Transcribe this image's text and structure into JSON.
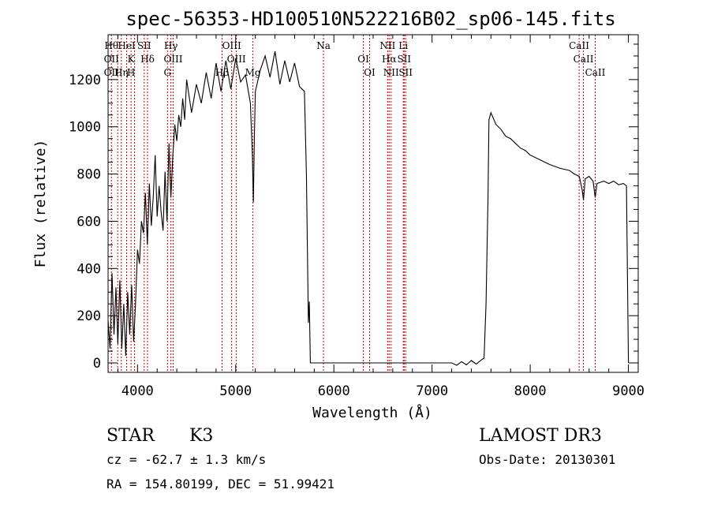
{
  "chart_data": {
    "type": "line",
    "title": "spec-56353-HD100510N522216B02_sp06-145.fits",
    "xlabel": "Wavelength (Å)",
    "ylabel": "Flux (relative)",
    "xlim": [
      3700,
      9100
    ],
    "ylim": [
      -40,
      1390
    ],
    "x_ticks": [
      4000,
      5000,
      6000,
      7000,
      8000,
      9000
    ],
    "y_ticks": [
      0,
      200,
      400,
      600,
      800,
      1000,
      1200
    ],
    "grid": false,
    "series": [
      {
        "points": [
          [
            3700,
            180
          ],
          [
            3720,
            60
          ],
          [
            3740,
            380
          ],
          [
            3760,
            120
          ],
          [
            3780,
            320
          ],
          [
            3800,
            80
          ],
          [
            3820,
            350
          ],
          [
            3840,
            60
          ],
          [
            3860,
            250
          ],
          [
            3880,
            30
          ],
          [
            3900,
            300
          ],
          [
            3920,
            120
          ],
          [
            3940,
            330
          ],
          [
            3960,
            90
          ],
          [
            3980,
            250
          ],
          [
            4000,
            480
          ],
          [
            4020,
            420
          ],
          [
            4040,
            600
          ],
          [
            4060,
            550
          ],
          [
            4080,
            720
          ],
          [
            4100,
            500
          ],
          [
            4120,
            760
          ],
          [
            4140,
            580
          ],
          [
            4160,
            700
          ],
          [
            4180,
            880
          ],
          [
            4200,
            620
          ],
          [
            4220,
            750
          ],
          [
            4240,
            640
          ],
          [
            4260,
            560
          ],
          [
            4280,
            810
          ],
          [
            4300,
            600
          ],
          [
            4320,
            930
          ],
          [
            4340,
            700
          ],
          [
            4360,
            880
          ],
          [
            4380,
            1010
          ],
          [
            4400,
            940
          ],
          [
            4420,
            1050
          ],
          [
            4440,
            1000
          ],
          [
            4460,
            1120
          ],
          [
            4480,
            1030
          ],
          [
            4500,
            1200
          ],
          [
            4550,
            1060
          ],
          [
            4600,
            1180
          ],
          [
            4650,
            1100
          ],
          [
            4700,
            1230
          ],
          [
            4750,
            1120
          ],
          [
            4800,
            1270
          ],
          [
            4850,
            1150
          ],
          [
            4900,
            1280
          ],
          [
            4950,
            1160
          ],
          [
            5000,
            1290
          ],
          [
            5050,
            1190
          ],
          [
            5100,
            1220
          ],
          [
            5150,
            1100
          ],
          [
            5170,
            880
          ],
          [
            5180,
            680
          ],
          [
            5190,
            950
          ],
          [
            5200,
            1150
          ],
          [
            5250,
            1240
          ],
          [
            5300,
            1300
          ],
          [
            5350,
            1210
          ],
          [
            5400,
            1320
          ],
          [
            5450,
            1180
          ],
          [
            5500,
            1280
          ],
          [
            5550,
            1190
          ],
          [
            5600,
            1270
          ],
          [
            5650,
            1170
          ],
          [
            5700,
            1150
          ],
          [
            5720,
            800
          ],
          [
            5740,
            170
          ],
          [
            5750,
            260
          ],
          [
            5760,
            0
          ],
          [
            6000,
            0
          ],
          [
            6500,
            0
          ],
          [
            7000,
            0
          ],
          [
            7200,
            0
          ],
          [
            7250,
            -10
          ],
          [
            7300,
            5
          ],
          [
            7350,
            -8
          ],
          [
            7400,
            10
          ],
          [
            7450,
            -5
          ],
          [
            7500,
            12
          ],
          [
            7530,
            20
          ],
          [
            7550,
            250
          ],
          [
            7570,
            700
          ],
          [
            7580,
            1030
          ],
          [
            7600,
            1060
          ],
          [
            7650,
            1010
          ],
          [
            7700,
            990
          ],
          [
            7750,
            960
          ],
          [
            7800,
            950
          ],
          [
            7850,
            930
          ],
          [
            7900,
            910
          ],
          [
            7950,
            900
          ],
          [
            8000,
            880
          ],
          [
            8100,
            860
          ],
          [
            8200,
            840
          ],
          [
            8300,
            825
          ],
          [
            8400,
            815
          ],
          [
            8450,
            800
          ],
          [
            8500,
            790
          ],
          [
            8530,
            730
          ],
          [
            8542,
            690
          ],
          [
            8560,
            780
          ],
          [
            8600,
            790
          ],
          [
            8640,
            770
          ],
          [
            8662,
            700
          ],
          [
            8680,
            760
          ],
          [
            8750,
            770
          ],
          [
            8800,
            760
          ],
          [
            8850,
            770
          ],
          [
            8900,
            755
          ],
          [
            8950,
            760
          ],
          [
            8980,
            750
          ],
          [
            9000,
            0
          ]
        ]
      }
    ],
    "lines": [
      {
        "x": 3734,
        "labels": [
          "Hθ",
          "OII",
          "OII"
        ]
      },
      {
        "x": 3798,
        "labels": []
      },
      {
        "x": 3835,
        "labels": [
          "Hη"
        ]
      },
      {
        "x": 3889,
        "labels": [
          "HeI"
        ]
      },
      {
        "x": 3934,
        "labels": [
          "K",
          "H"
        ]
      },
      {
        "x": 3970,
        "labels": []
      },
      {
        "x": 4068,
        "labels": [
          "SII"
        ]
      },
      {
        "x": 4102,
        "labels": [
          "Hδ"
        ]
      },
      {
        "x": 4305,
        "labels": [
          "G"
        ]
      },
      {
        "x": 4340,
        "labels": [
          "Hγ"
        ]
      },
      {
        "x": 4363,
        "labels": [
          "OIII"
        ]
      },
      {
        "x": 4861,
        "labels": [
          "Hβ"
        ]
      },
      {
        "x": 4959,
        "labels": [
          "OIII"
        ]
      },
      {
        "x": 5007,
        "labels": [
          "OIII"
        ]
      },
      {
        "x": 5175,
        "labels": [
          "Mg"
        ]
      },
      {
        "x": 5894,
        "labels": [
          "Na"
        ]
      },
      {
        "x": 6300,
        "labels": [
          "OI"
        ]
      },
      {
        "x": 6364,
        "labels": [
          "OI"
        ]
      },
      {
        "x": 6548,
        "labels": [
          "NII"
        ]
      },
      {
        "x": 6563,
        "labels": [
          "Hα"
        ]
      },
      {
        "x": 6583,
        "labels": [
          "NII"
        ]
      },
      {
        "x": 6707,
        "labels": [
          "Li"
        ]
      },
      {
        "x": 6716,
        "labels": [
          "SII"
        ]
      },
      {
        "x": 6731,
        "labels": [
          "SII"
        ]
      },
      {
        "x": 8498,
        "labels": [
          "CaII"
        ]
      },
      {
        "x": 8542,
        "labels": [
          "CaII"
        ]
      },
      {
        "x": 8662,
        "labels": [
          "CaII"
        ]
      }
    ]
  },
  "info": {
    "class": "STAR",
    "subclass": "K3",
    "survey": "LAMOST DR3",
    "cz": "cz = -62.7 ± 1.3 km/s",
    "obs_date": "Obs-Date: 20130301",
    "coords": "RA = 154.80199, DEC =  51.99421"
  }
}
